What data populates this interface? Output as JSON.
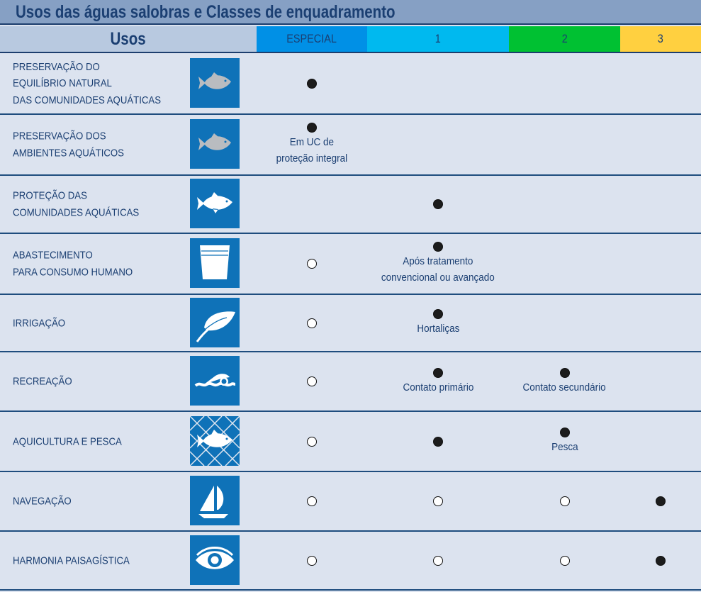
{
  "title": "Usos das águas salobras e Classes de enquadramento",
  "header": {
    "usos": "Usos",
    "classes": [
      {
        "label": "ESPECIAL",
        "color": "#0090e6"
      },
      {
        "label": "1",
        "color": "#00b9ef"
      },
      {
        "label": "2",
        "color": "#00c132"
      },
      {
        "label": "3",
        "color": "#ffd040"
      }
    ]
  },
  "rows": [
    {
      "label": "PRESERVAÇÃO DO\nEQUILÍBRIO NATURAL\nDAS COMUNIDADES AQUÁTICAS",
      "icon": "fish-gray-icon",
      "cells": [
        {
          "mark": "filled",
          "note": ""
        },
        {
          "mark": null,
          "note": ""
        },
        {
          "mark": null,
          "note": ""
        },
        {
          "mark": null,
          "note": ""
        }
      ]
    },
    {
      "label": "PRESERVAÇÃO DOS\nAMBIENTES AQUÁTICOS",
      "icon": "fish-gray-icon",
      "cells": [
        {
          "mark": "filled",
          "note": "Em UC de\nproteção integral"
        },
        {
          "mark": null,
          "note": ""
        },
        {
          "mark": null,
          "note": ""
        },
        {
          "mark": null,
          "note": ""
        }
      ]
    },
    {
      "label": "PROTEÇÃO DAS\nCOMUNIDADES AQUÁTICAS",
      "icon": "fish-icon",
      "cells": [
        {
          "mark": null,
          "note": ""
        },
        {
          "mark": "filled",
          "note": ""
        },
        {
          "mark": null,
          "note": ""
        },
        {
          "mark": null,
          "note": ""
        }
      ]
    },
    {
      "label": "ABASTECIMENTO\nPARA CONSUMO HUMANO",
      "icon": "cup-icon",
      "cells": [
        {
          "mark": "empty",
          "note": ""
        },
        {
          "mark": "filled",
          "note": "Após tratamento\nconvencional ou avançado"
        },
        {
          "mark": null,
          "note": ""
        },
        {
          "mark": null,
          "note": ""
        }
      ]
    },
    {
      "label": "IRRIGAÇÃO",
      "icon": "leaf-icon",
      "cells": [
        {
          "mark": "empty",
          "note": ""
        },
        {
          "mark": "filled",
          "note": "Hortaliças"
        },
        {
          "mark": null,
          "note": ""
        },
        {
          "mark": null,
          "note": ""
        }
      ]
    },
    {
      "label": "RECREAÇÃO",
      "icon": "swimmer-icon",
      "cells": [
        {
          "mark": "empty",
          "note": ""
        },
        {
          "mark": "filled",
          "note": "Contato primário"
        },
        {
          "mark": "filled",
          "note": "Contato secundário"
        },
        {
          "mark": null,
          "note": ""
        }
      ]
    },
    {
      "label": "AQUICULTURA E PESCA",
      "icon": "fish-net-icon",
      "cells": [
        {
          "mark": "empty",
          "note": ""
        },
        {
          "mark": "filled",
          "note": ""
        },
        {
          "mark": "filled",
          "note": "Pesca"
        },
        {
          "mark": null,
          "note": ""
        }
      ]
    },
    {
      "label": "NAVEGAÇÃO",
      "icon": "sailboat-icon",
      "cells": [
        {
          "mark": "empty",
          "note": ""
        },
        {
          "mark": "empty",
          "note": ""
        },
        {
          "mark": "empty",
          "note": ""
        },
        {
          "mark": "filled",
          "note": ""
        }
      ]
    },
    {
      "label": "HARMONIA PAISAGÍSTICA",
      "icon": "eye-icon",
      "cells": [
        {
          "mark": "empty",
          "note": ""
        },
        {
          "mark": "empty",
          "note": ""
        },
        {
          "mark": "empty",
          "note": ""
        },
        {
          "mark": "filled",
          "note": ""
        }
      ]
    }
  ]
}
